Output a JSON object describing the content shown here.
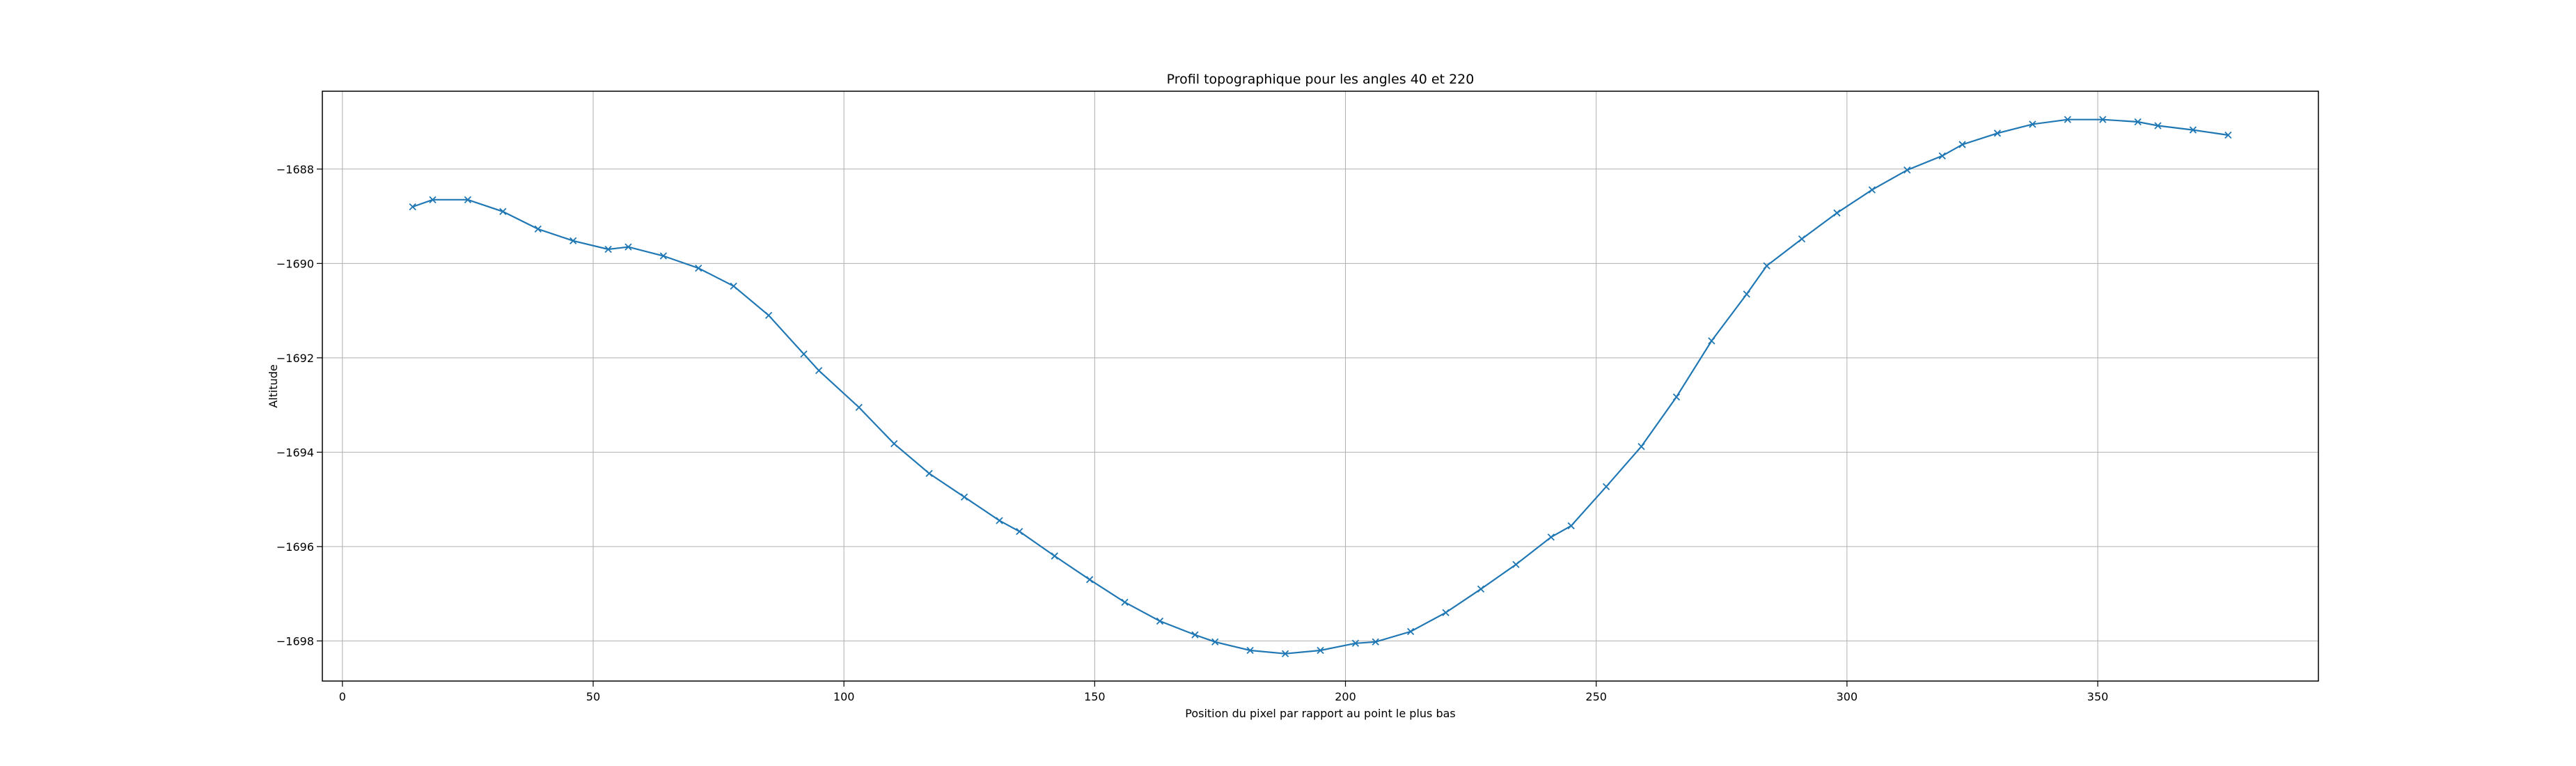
{
  "chart_data": {
    "type": "line",
    "title": "Profil topographique pour les angles 40 et 220",
    "xlabel": "Position du pixel par rapport au point le plus bas",
    "ylabel": "Altitude",
    "xlim": [
      -4,
      394
    ],
    "ylim": [
      -1698.85,
      -1686.35
    ],
    "xticks": [
      0,
      50,
      100,
      150,
      200,
      250,
      300,
      350
    ],
    "yticks": [
      -1688,
      -1690,
      -1692,
      -1694,
      -1696,
      -1698
    ],
    "grid": true,
    "color": "#1f77b4",
    "marker": "x",
    "series": [
      {
        "x": [
          14,
          18,
          25,
          32,
          39,
          46,
          53,
          57,
          64,
          71,
          78,
          85,
          92,
          95,
          103,
          110,
          117,
          124,
          131,
          135,
          142,
          149,
          156,
          163,
          170,
          174,
          181,
          188,
          195,
          202,
          206,
          213,
          220,
          227,
          234,
          241,
          245,
          252,
          259,
          266,
          273,
          280,
          284,
          291,
          298,
          305,
          312,
          319,
          323,
          330,
          337,
          344,
          351,
          358,
          362,
          369,
          376
        ],
        "y": [
          -1688.8,
          -1688.65,
          -1688.65,
          -1688.9,
          -1689.27,
          -1689.52,
          -1689.7,
          -1689.65,
          -1689.84,
          -1690.1,
          -1690.48,
          -1691.1,
          -1691.92,
          -1692.27,
          -1693.05,
          -1693.82,
          -1694.45,
          -1694.95,
          -1695.45,
          -1695.68,
          -1696.2,
          -1696.7,
          -1697.18,
          -1697.58,
          -1697.87,
          -1698.02,
          -1698.2,
          -1698.27,
          -1698.2,
          -1698.05,
          -1698.02,
          -1697.8,
          -1697.4,
          -1696.9,
          -1696.38,
          -1695.8,
          -1695.56,
          -1694.73,
          -1693.88,
          -1692.83,
          -1691.64,
          -1690.65,
          -1690.05,
          -1689.48,
          -1688.93,
          -1688.44,
          -1688.02,
          -1687.72,
          -1687.48,
          -1687.24,
          -1687.05,
          -1686.95,
          -1686.95,
          -1687.0,
          -1687.08,
          -1687.17,
          -1687.28
        ]
      }
    ]
  }
}
